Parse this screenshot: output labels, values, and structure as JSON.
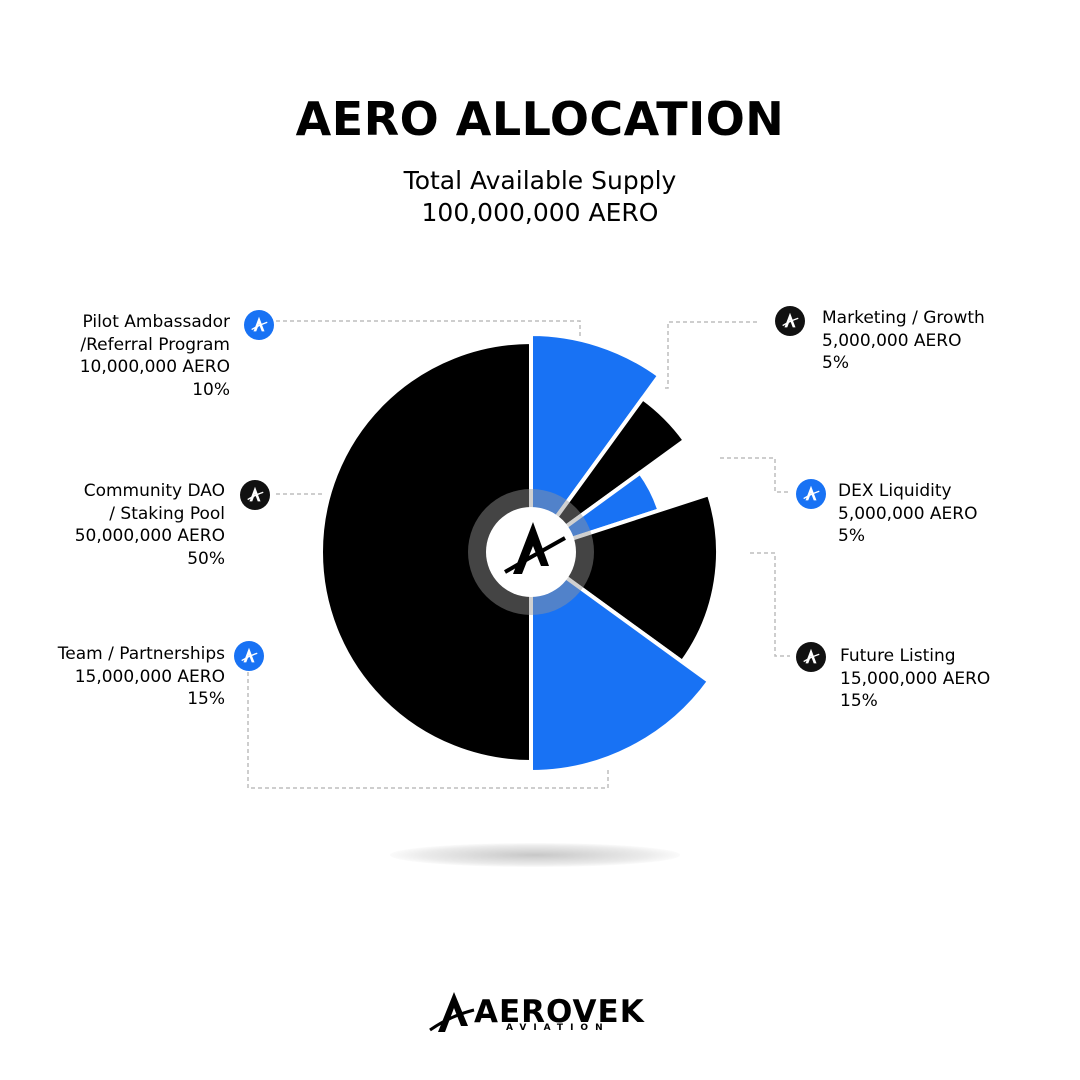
{
  "title": "AERO ALLOCATION",
  "subtitle_line1": "Total Available Supply",
  "subtitle_line2": "100,000,000  AERO",
  "colors": {
    "blue": "#1872f4",
    "black": "#000000",
    "gray": "#bdbdbd"
  },
  "chart_data": {
    "type": "pie",
    "title": "AERO ALLOCATION",
    "total": "100,000,000  AERO",
    "series": [
      {
        "name": "Pilot Ambassador /Referral Program",
        "value": 10,
        "amount": "10,000,000 AERO",
        "percent": "10%",
        "color": "#1872f4"
      },
      {
        "name": "Marketing / Growth",
        "value": 5,
        "amount": "5,000,000 AERO",
        "percent": "5%",
        "color": "#000000"
      },
      {
        "name": "DEX Liquidity",
        "value": 5,
        "amount": "5,000,000 AERO",
        "percent": "5%",
        "color": "#1872f4"
      },
      {
        "name": "Future Listing",
        "value": 15,
        "amount": "15,000,000 AERO",
        "percent": "15%",
        "color": "#000000"
      },
      {
        "name": "Team / Partnerships",
        "value": 15,
        "amount": "15,000,000 AERO",
        "percent": "15%",
        "color": "#1872f4"
      },
      {
        "name": "Community DAO / Staking Pool",
        "value": 50,
        "amount": "50,000,000 AERO",
        "percent": "50%",
        "color": "#000000"
      }
    ]
  },
  "labels": {
    "pilot": {
      "line1": "Pilot Ambassador",
      "line2": "/Referral Program",
      "amount": "10,000,000 AERO",
      "percent": "10%"
    },
    "community": {
      "line1": "Community DAO",
      "line2": "/ Staking Pool",
      "amount": "50,000,000 AERO",
      "percent": "50%"
    },
    "team": {
      "line1": "Team / Partnerships",
      "amount": "15,000,000 AERO",
      "percent": "15%"
    },
    "marketing": {
      "line1": "Marketing / Growth",
      "amount": "5,000,000 AERO",
      "percent": "5%"
    },
    "dex": {
      "line1": "DEX Liquidity",
      "amount": "5,000,000 AERO",
      "percent": "5%"
    },
    "future": {
      "line1": "Future Listing",
      "amount": "15,000,000 AERO",
      "percent": "15%"
    }
  },
  "icons": {
    "badge": "aerovek-logo-icon",
    "center": "aerovek-logo-icon"
  },
  "brand": {
    "name": "AEROVEK",
    "tagline": "AVIATION"
  }
}
